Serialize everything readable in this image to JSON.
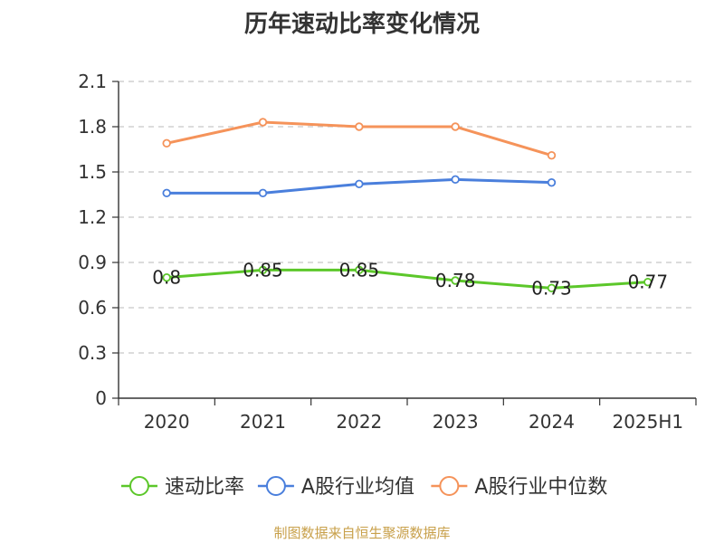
{
  "chart_data": {
    "type": "line",
    "title": "历年速动比率变化情况",
    "categories": [
      "2020",
      "2021",
      "2022",
      "2023",
      "2024",
      "2025H1"
    ],
    "ylim": [
      0,
      2.1
    ],
    "yticks": [
      "0",
      "0.3",
      "0.6",
      "0.9",
      "1.2",
      "1.5",
      "1.8",
      "2.1"
    ],
    "grid": true,
    "legend_position": "bottom",
    "series": [
      {
        "name": "速动比率",
        "color": "#5cc72a",
        "values": [
          0.8,
          0.85,
          0.85,
          0.78,
          0.73,
          0.77
        ],
        "data_labels": [
          "0.8",
          "0.85",
          "0.85",
          "0.78",
          "0.73",
          "0.77"
        ]
      },
      {
        "name": "A股行业均值",
        "color": "#4a7fdc",
        "values": [
          1.36,
          1.36,
          1.42,
          1.45,
          1.43,
          null
        ]
      },
      {
        "name": "A股行业中位数",
        "color": "#f5935a",
        "values": [
          1.69,
          1.83,
          1.8,
          1.8,
          1.61,
          null
        ]
      }
    ]
  },
  "source_note": "制图数据来自恒生聚源数据库"
}
